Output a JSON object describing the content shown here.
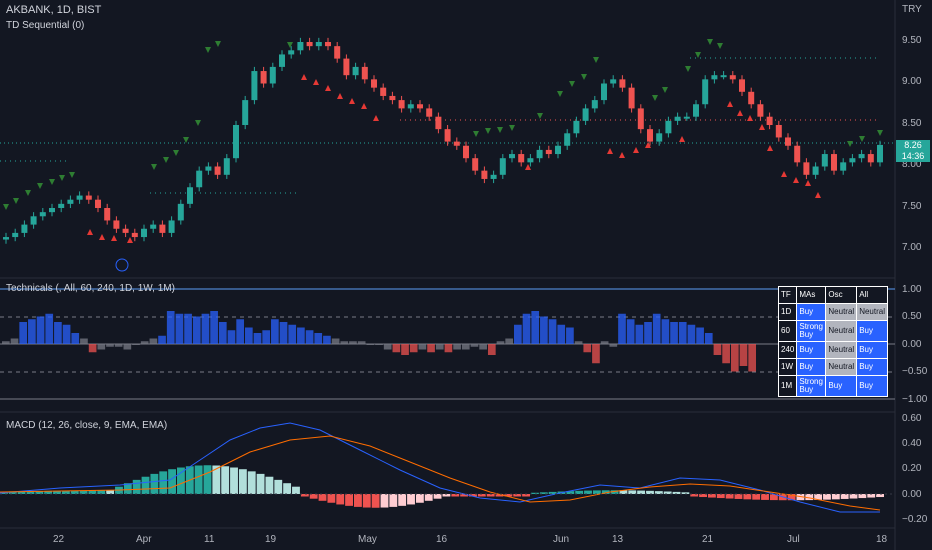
{
  "header": {
    "symbol_line": "AKBANK, 1D, BIST",
    "indicator": "TD Sequential (0)",
    "currency": "TRY"
  },
  "price_axis": [
    "9.50",
    "9.00",
    "8.50",
    "8.00",
    "7.50",
    "7.00"
  ],
  "price_tag": {
    "value": "8.26",
    "countdown": "14:36"
  },
  "technicals": {
    "label": "Technicals (, All, 60, 240, 1D, 1W, 1M)",
    "axis": [
      "1.00",
      "0.50",
      "0.00",
      "−0.50",
      "−1.00"
    ],
    "table": {
      "headers": [
        "TF",
        "MAs",
        "Osc",
        "All"
      ],
      "rows": [
        [
          "1D",
          "Buy",
          "Neutral",
          "Neutral"
        ],
        [
          "60",
          "Strong Buy",
          "Neutral",
          "Buy"
        ],
        [
          "240",
          "Buy",
          "Neutral",
          "Buy"
        ],
        [
          "1W",
          "Buy",
          "Neutral",
          "Buy"
        ],
        [
          "1M",
          "Strong Buy",
          "Buy",
          "Buy"
        ]
      ]
    }
  },
  "macd": {
    "label": "MACD (12, 26, close, 9, EMA, EMA)",
    "axis": [
      "0.60",
      "0.40",
      "0.20",
      "0.00",
      "−0.20"
    ]
  },
  "time_axis": [
    "22",
    "Apr",
    "11",
    "19",
    "May",
    "16",
    "Jun",
    "13",
    "21",
    "Jul",
    "18"
  ],
  "colors": {
    "background": "#131722",
    "up": "#26a69a",
    "down": "#ef5350",
    "buy_blue": "#2962ff",
    "signal_green": "#2e7d32",
    "signal_red": "#e53935"
  }
}
